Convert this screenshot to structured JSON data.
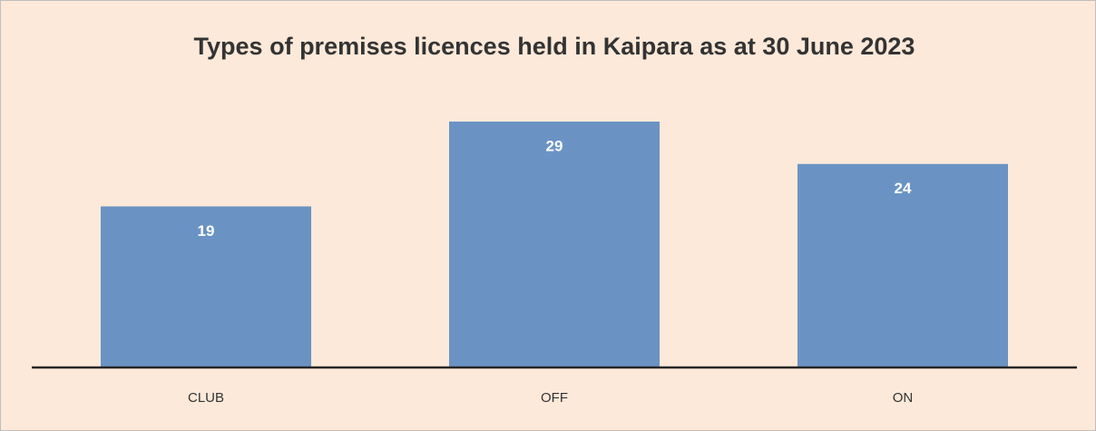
{
  "chart_data": {
    "type": "bar",
    "title": "Types of premises licences held in Kaipara as at 30 June 2023",
    "categories": [
      "CLUB",
      "OFF",
      "ON"
    ],
    "values": [
      19,
      29,
      24
    ],
    "color": "#6a93c4"
  }
}
